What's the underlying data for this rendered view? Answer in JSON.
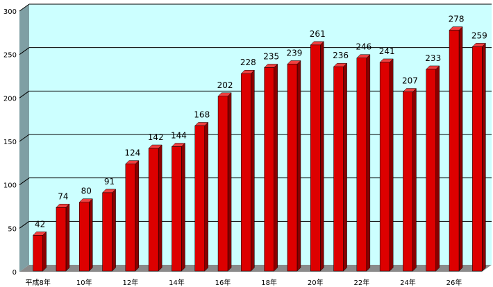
{
  "chart_data": {
    "type": "bar",
    "categories": [
      "平成8年",
      "",
      "10年",
      "",
      "12年",
      "",
      "14年",
      "",
      "16年",
      "",
      "18年",
      "",
      "20年",
      "",
      "22年",
      "",
      "24年",
      "",
      "26年",
      ""
    ],
    "values": [
      42,
      74,
      80,
      91,
      124,
      142,
      144,
      168,
      202,
      228,
      235,
      239,
      261,
      236,
      246,
      241,
      207,
      233,
      278,
      259
    ],
    "ylim": [
      0,
      300
    ],
    "yticks": [
      0,
      50,
      100,
      150,
      200,
      250,
      300
    ],
    "grid": true,
    "style": "3d",
    "colors": {
      "bar_front": "#dd0000",
      "bar_side": "#8a0000",
      "bar_top": "#f04040",
      "plot_back": "#ccffff",
      "left_wall": "#7f9fa4",
      "floor": "#8a8a8a",
      "gridline": "#000000"
    }
  }
}
